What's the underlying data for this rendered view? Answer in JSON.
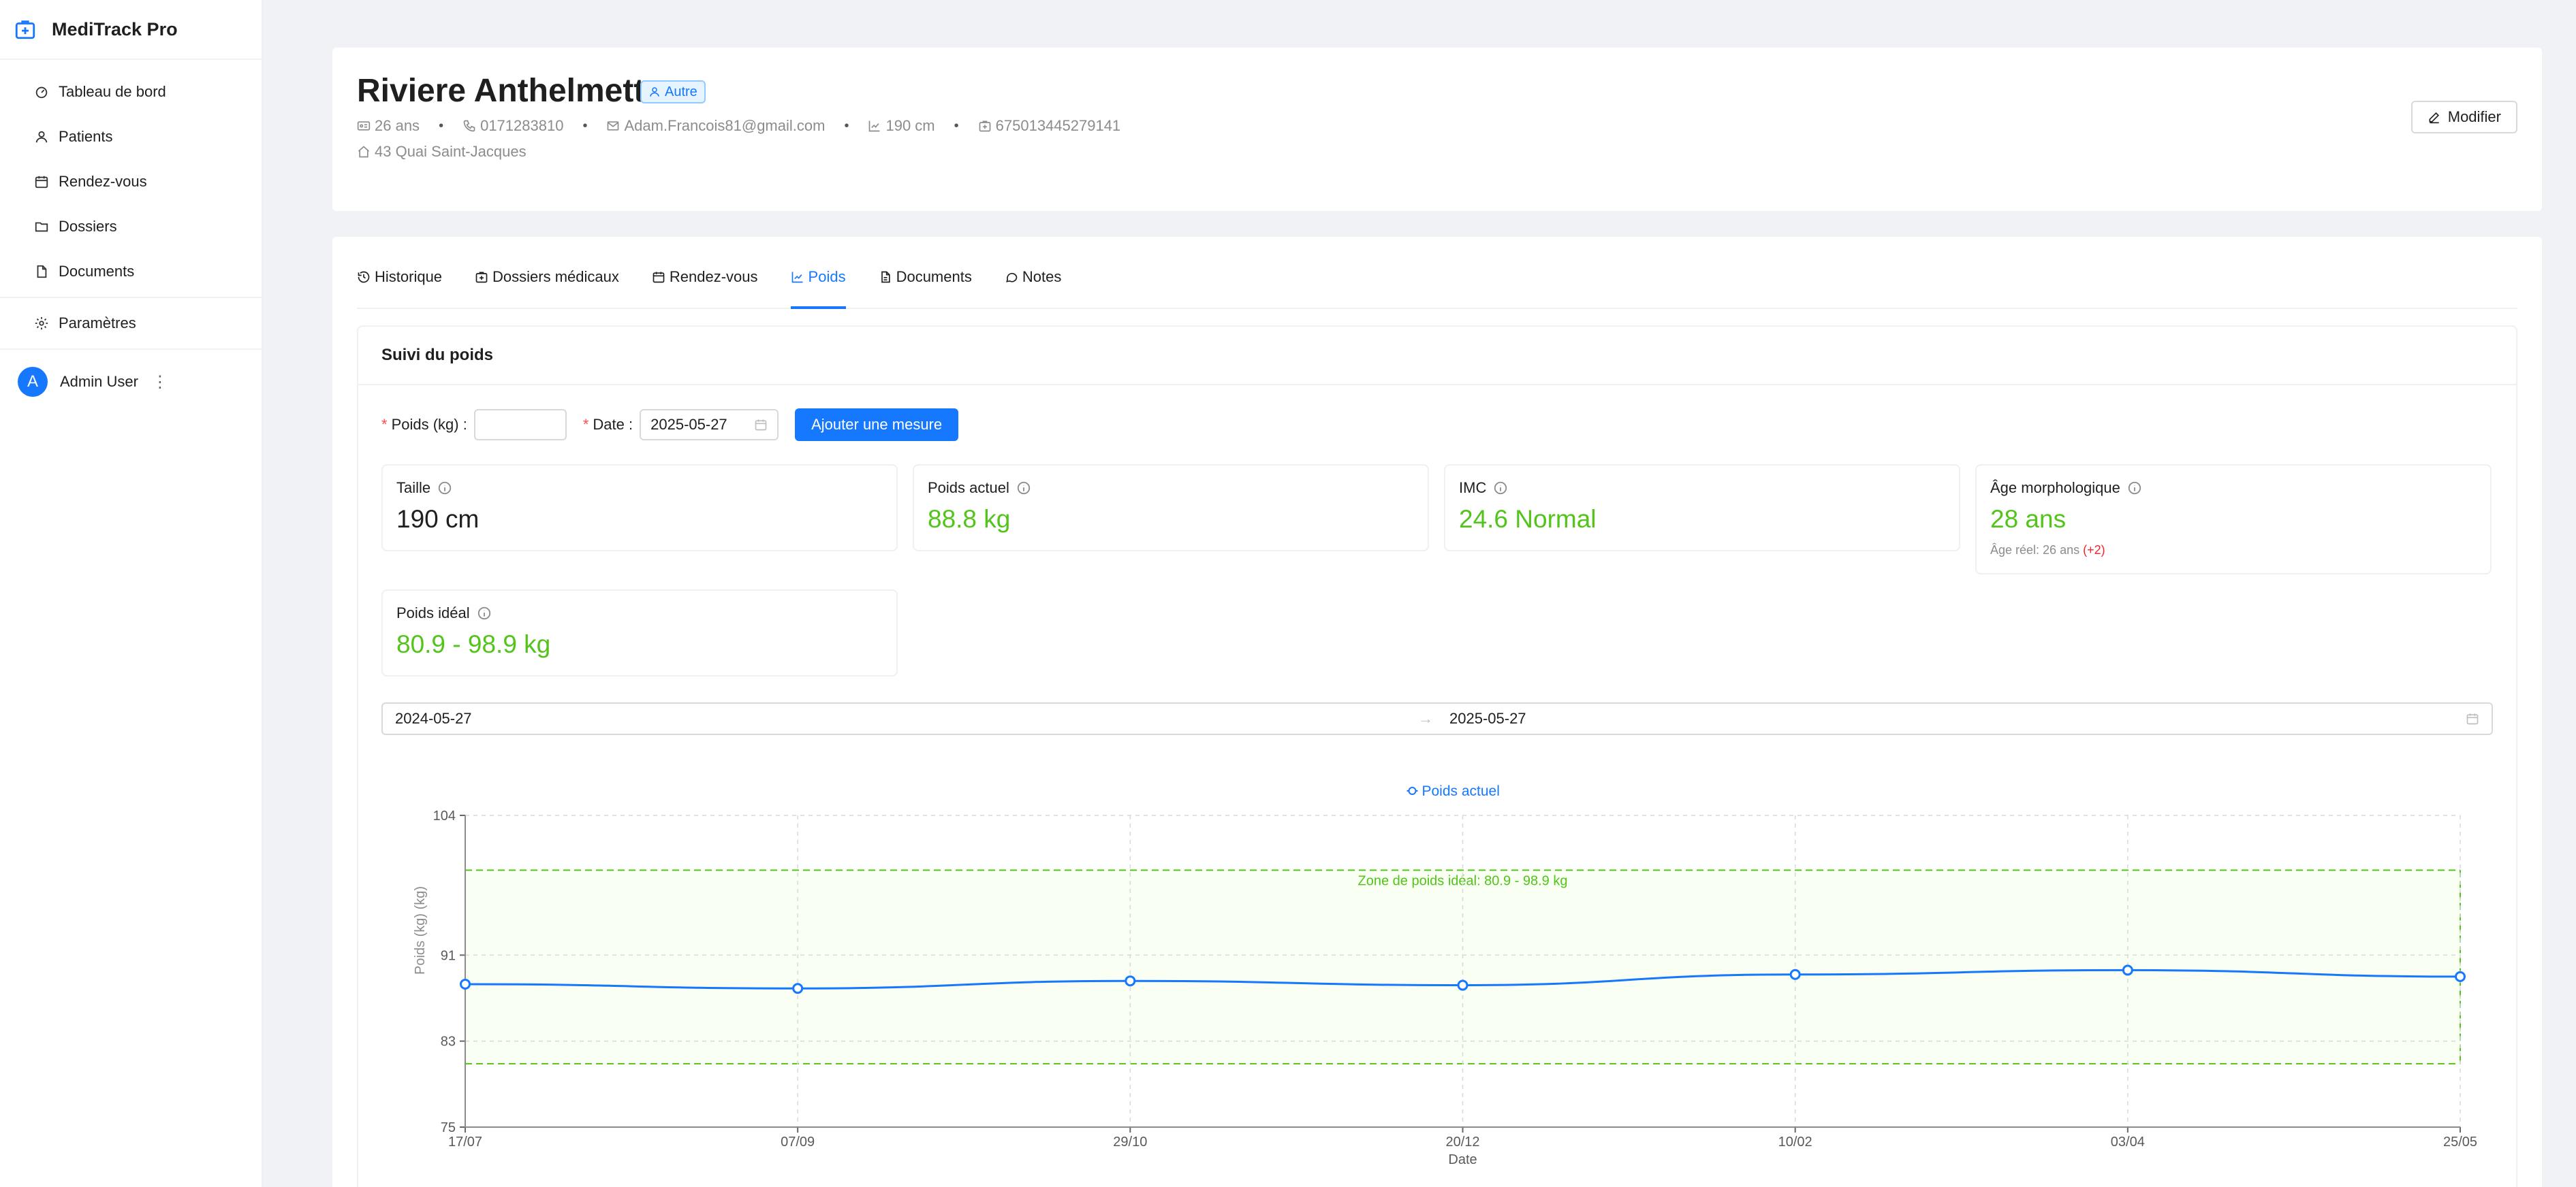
{
  "app": {
    "name": "MediTrack Pro"
  },
  "sidebar": {
    "items": [
      {
        "label": "Tableau de bord",
        "icon": "dashboard-icon"
      },
      {
        "label": "Patients",
        "icon": "user-icon"
      },
      {
        "label": "Rendez-vous",
        "icon": "calendar-icon"
      },
      {
        "label": "Dossiers",
        "icon": "folder-icon"
      },
      {
        "label": "Documents",
        "icon": "file-icon"
      },
      {
        "label": "Paramètres",
        "icon": "gear-icon"
      }
    ],
    "user": {
      "initial": "A",
      "name": "Admin User"
    }
  },
  "patient": {
    "name": "Riviere Anthelmette",
    "tag": "Autre",
    "age": "26 ans",
    "phone": "0171283810",
    "email": "Adam.Francois81@gmail.com",
    "height": "190 cm",
    "id": "675013445279141",
    "address": "43 Quai Saint-Jacques",
    "edit_label": "Modifier"
  },
  "tabs": [
    {
      "label": "Historique",
      "active": false
    },
    {
      "label": "Dossiers médicaux",
      "active": false
    },
    {
      "label": "Rendez-vous",
      "active": false
    },
    {
      "label": "Poids",
      "active": true
    },
    {
      "label": "Documents",
      "active": false
    },
    {
      "label": "Notes",
      "active": false
    }
  ],
  "weight": {
    "title": "Suivi du poids",
    "form": {
      "weight_label": "Poids (kg)",
      "date_label": "Date",
      "date_value": "2025-05-27",
      "add_label": "Ajouter une mesure"
    },
    "stats": {
      "height": {
        "label": "Taille",
        "value": "190 cm"
      },
      "current": {
        "label": "Poids actuel",
        "value": "88.8 kg"
      },
      "bmi": {
        "label": "IMC",
        "value": "24.6 Normal"
      },
      "morph_age": {
        "label": "Âge morphologique",
        "value": "28 ans",
        "sub": "Âge réel: 26 ans",
        "diff": "(+2)"
      },
      "ideal": {
        "label": "Poids idéal",
        "value": "80.9 - 98.9 kg"
      }
    },
    "range": {
      "start": "2024-05-27",
      "end": "2025-05-27",
      "arrow": "→"
    }
  },
  "colors": {
    "primary": "#1677ff",
    "success": "#52c41a",
    "danger": "#f5222d"
  },
  "chart_data": {
    "type": "line",
    "legend": "Poids actuel",
    "xlabel": "Date",
    "ylabel": "Poids (kg) (kg)",
    "yticks": [
      75,
      83,
      91,
      104
    ],
    "ylim": [
      75,
      104
    ],
    "categories": [
      "17/07",
      "07/09",
      "29/10",
      "20/12",
      "10/02",
      "03/04",
      "25/05"
    ],
    "series": [
      {
        "name": "Poids actuel",
        "values": [
          88.3,
          87.9,
          88.6,
          88.2,
          89.2,
          89.6,
          89.0
        ]
      }
    ],
    "ideal_zone": {
      "min": 80.9,
      "max": 98.9,
      "label": "Zone de poids idéal: 80.9 - 98.9 kg"
    }
  }
}
